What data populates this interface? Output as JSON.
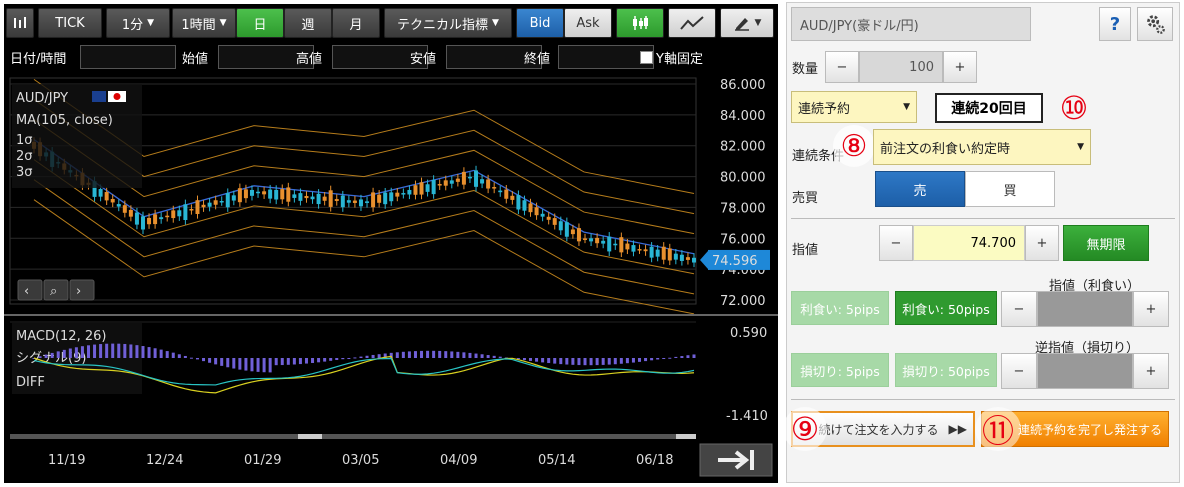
{
  "toolbar": {
    "tick": "TICK",
    "interval1": "1分",
    "interval2": "1時間",
    "day": "日",
    "week": "週",
    "month": "月",
    "tech": "テクニカル指標",
    "bid": "Bid",
    "ask": "Ask"
  },
  "ohlc": {
    "datetime": "日付/時間",
    "open": "始値",
    "high": "高値",
    "low": "安値",
    "close": "終値",
    "yfix": "Y軸固定"
  },
  "legend": {
    "symbol": "AUD/JPY",
    "ma": "MA(105, close)",
    "s1": "1σ",
    "s2": "2σ",
    "s3": "3σ"
  },
  "price_axis": [
    "86.000",
    "84.000",
    "82.000",
    "80.000",
    "78.000",
    "76.000",
    "74.000",
    "72.000"
  ],
  "current_price": "74.596",
  "macd": {
    "title": "MACD(12, 26)",
    "signal": "シグナル(9)",
    "diff": "DIFF",
    "top": "0.590",
    "bottom": "-1.410"
  },
  "dates": [
    "11/19",
    "12/24",
    "01/29",
    "03/05",
    "04/09",
    "05/14",
    "06/18"
  ],
  "colors": {
    "up": "#29b6d4",
    "down": "#e8902e",
    "ma": "#3a6ad8",
    "band": "#c98a1e",
    "macd": "#d8d020",
    "signal": "#29c4c4",
    "diff": "#7060d8",
    "green": "#2f9a2f",
    "blue": "#1d5fa8"
  },
  "chart_data": {
    "type": "line",
    "x": [
      "11/19",
      "12/24",
      "01/29",
      "03/05",
      "04/09",
      "05/14",
      "06/18"
    ],
    "series": [
      {
        "name": "AUD/JPY",
        "values": [
          82.0,
          77.0,
          79.0,
          78.3,
          80.0,
          76.0,
          74.6
        ]
      }
    ],
    "ylim": [
      72,
      86
    ]
  },
  "order": {
    "pair": "AUD/JPY(豪ドル/円)",
    "help": "?",
    "qty_label": "数量",
    "minus": "−",
    "plus": "+",
    "qty": "100",
    "type": "連続予約",
    "counter": "連続20回目",
    "cond_label": "連続条件",
    "cond": "前注文の利食い約定時",
    "side_label": "売買",
    "sell": "売",
    "buy": "買",
    "limit_label": "指値",
    "limit": "74.700",
    "expiry": "無期限",
    "tp_label": "指値（利食い）",
    "tp5": "利食い: 5pips",
    "tp50": "利食い: 50pips",
    "sl_label": "逆指値（損切り）",
    "sl5": "損切り: 5pips",
    "sl50": "損切り: 50pips",
    "continue": "続けて注文を入力する",
    "complete": "連続予約を完了し発注する",
    "c8": "⑧",
    "c9": "⑨",
    "c10": "⑩",
    "c11": "⑪"
  }
}
